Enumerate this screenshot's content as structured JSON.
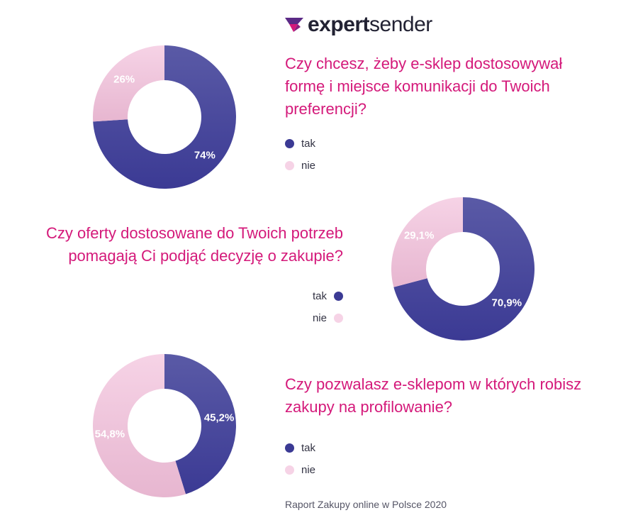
{
  "brand": {
    "name_bold": "expert",
    "name_light": "sender"
  },
  "colors": {
    "tak": "#3b3a94",
    "tak_light": "#5a5aa6",
    "nie": "#f6d3e6",
    "nie_dark": "#e7b6d0",
    "question": "#d4197a"
  },
  "source": "Raport Zakupy online w Polsce 2020",
  "chart_data": [
    {
      "type": "pie",
      "title": "Czy chcesz, żeby e-sklep dostosowywał formę i miejsce komunikacji do Twoich preferencji?",
      "title_lines": [
        "Czy chcesz, żeby e-sklep dostosowywał",
        "formę i miejsce komunikacji do Twoich",
        "preferencji?"
      ],
      "categories": [
        "tak",
        "nie"
      ],
      "values": [
        74,
        26
      ],
      "labels": [
        "74%",
        "26%"
      ],
      "legend": [
        "tak",
        "nie"
      ]
    },
    {
      "type": "pie",
      "title": "Czy oferty dostosowane do Twoich potrzeb pomagają Ci podjąć decyzję o zakupie?",
      "title_lines": [
        "Czy oferty dostosowane do Twoich potrzeb",
        "pomagają Ci podjąć decyzję o zakupie?"
      ],
      "categories": [
        "tak",
        "nie"
      ],
      "values": [
        70.9,
        29.1
      ],
      "labels": [
        "70,9%",
        "29,1%"
      ],
      "legend": [
        "tak",
        "nie"
      ]
    },
    {
      "type": "pie",
      "title": "Czy pozwalasz e-sklepom w których robisz zakupy na profilowanie?",
      "title_lines": [
        "Czy pozwalasz e-sklepom w których robisz",
        "zakupy na profilowanie?"
      ],
      "categories": [
        "tak",
        "nie"
      ],
      "values": [
        45.2,
        54.8
      ],
      "labels": [
        "45,2%",
        "54,8%"
      ],
      "legend": [
        "tak",
        "nie"
      ]
    }
  ]
}
